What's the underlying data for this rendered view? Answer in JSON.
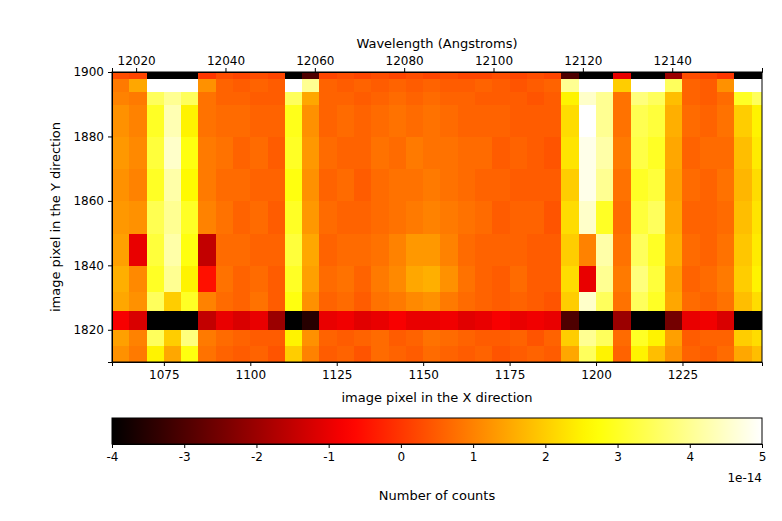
{
  "chart_data": {
    "type": "heatmap",
    "color": "hot",
    "xlabel": "image pixel in the X direction",
    "ylabel": "image pixel in the Y direction",
    "top_xlabel": "Wavelength (Angstroms)",
    "xlim": [
      1060,
      1248
    ],
    "xticks": [
      1075,
      1100,
      1125,
      1150,
      1175,
      1200,
      1225
    ],
    "ylim": [
      1810,
      1900
    ],
    "yticks": [
      1820,
      1840,
      1860,
      1880,
      1900
    ],
    "top_xlim": [
      12014.6,
      12160.1
    ],
    "top_xticks": [
      12020,
      12040,
      12060,
      12080,
      12100,
      12120,
      12140
    ],
    "x_edges": [
      1060,
      1065,
      1070,
      1075,
      1080,
      1085,
      1090,
      1095,
      1100,
      1105,
      1110,
      1115,
      1120,
      1125,
      1130,
      1135,
      1140,
      1145,
      1150,
      1155,
      1160,
      1165,
      1170,
      1175,
      1180,
      1185,
      1190,
      1195,
      1200,
      1205,
      1210,
      1215,
      1220,
      1225,
      1230,
      1235,
      1240,
      1245,
      1248
    ],
    "y_edges": [
      1810,
      1815,
      1820,
      1826,
      1832,
      1840,
      1850,
      1860,
      1870,
      1880,
      1890,
      1894,
      1898,
      1900
    ],
    "cells": [
      [
        1.2,
        0.9,
        2.5,
        1.5,
        2.8,
        0.8,
        0.6,
        0.5,
        0.6,
        0.4,
        2.0,
        1.0,
        0.5,
        0.6,
        0.4,
        0.7,
        0.6,
        0.5,
        0.7,
        0.6,
        0.5,
        0.6,
        0.4,
        0.5,
        0.6,
        0.5,
        1.5,
        3.5,
        2.5,
        0.6,
        2.5,
        1.8,
        1.2,
        0.6,
        0.5,
        0.7,
        1.5,
        1.8
      ],
      [
        1.4,
        1.0,
        3.5,
        2.0,
        3.8,
        0.9,
        0.7,
        0.6,
        0.5,
        0.5,
        2.5,
        1.2,
        0.6,
        0.5,
        0.6,
        0.7,
        0.5,
        0.6,
        0.8,
        0.7,
        0.6,
        0.5,
        0.5,
        0.6,
        0.4,
        0.6,
        2.0,
        4.0,
        3.5,
        0.7,
        3.0,
        2.5,
        1.4,
        0.5,
        0.6,
        0.6,
        2.0,
        2.2
      ],
      [
        -0.8,
        -1.2,
        -4,
        -4,
        -4,
        -1.5,
        -1.0,
        -1.2,
        -1.0,
        -2.0,
        -4,
        -3.5,
        -1.0,
        -0.9,
        -1.1,
        -1.0,
        -0.8,
        -1.0,
        -1.0,
        -0.9,
        -1.1,
        -1.0,
        -0.8,
        -1.0,
        -0.9,
        -1.0,
        -3.0,
        -4,
        -4,
        -2.0,
        -4,
        -4,
        -2.5,
        -1.0,
        -0.9,
        -1.2,
        -4,
        -4
      ],
      [
        1.5,
        1.2,
        3.5,
        2.0,
        3.0,
        1.0,
        0.7,
        0.6,
        0.8,
        0.5,
        2.8,
        1.2,
        0.6,
        0.7,
        0.5,
        0.8,
        0.9,
        1.1,
        1.2,
        0.9,
        0.7,
        0.6,
        0.5,
        0.6,
        0.5,
        0.4,
        2.0,
        4.5,
        3.5,
        0.8,
        3.5,
        3.0,
        1.5,
        0.7,
        0.6,
        0.8,
        1.8,
        2.2
      ],
      [
        1.6,
        1.1,
        3.0,
        4.0,
        2.5,
        -0.5,
        0.8,
        0.6,
        0.7,
        0.5,
        3.0,
        1.4,
        0.7,
        0.8,
        0.6,
        0.9,
        1.1,
        1.5,
        1.6,
        1.2,
        0.8,
        0.6,
        0.5,
        0.7,
        0.5,
        0.5,
        2.2,
        -1.0,
        4.0,
        0.9,
        3.8,
        3.2,
        1.4,
        0.6,
        0.7,
        0.9,
        2.0,
        2.5
      ],
      [
        1.4,
        -1.0,
        3.2,
        4.2,
        2.8,
        -1.5,
        0.7,
        0.7,
        0.6,
        0.6,
        3.2,
        1.5,
        0.6,
        0.7,
        0.7,
        0.8,
        1.0,
        1.3,
        1.3,
        1.0,
        0.7,
        0.6,
        0.6,
        0.6,
        0.5,
        0.5,
        2.0,
        1.0,
        4.2,
        0.8,
        3.5,
        3.0,
        1.6,
        0.7,
        0.6,
        0.8,
        1.9,
        2.4
      ],
      [
        1.3,
        1.2,
        3.4,
        4.0,
        3.0,
        1.0,
        0.8,
        0.6,
        0.7,
        0.5,
        3.0,
        1.3,
        0.7,
        0.6,
        0.6,
        0.7,
        0.8,
        0.9,
        1.0,
        0.9,
        0.8,
        0.7,
        0.5,
        0.6,
        0.6,
        0.4,
        2.2,
        4.5,
        3.0,
        0.7,
        3.2,
        3.5,
        1.5,
        0.6,
        0.6,
        0.7,
        1.8,
        2.3
      ],
      [
        1.2,
        1.0,
        3.0,
        4.2,
        2.6,
        0.9,
        0.7,
        0.7,
        0.6,
        0.6,
        2.8,
        1.2,
        0.6,
        0.7,
        0.5,
        0.7,
        0.8,
        0.8,
        0.9,
        0.8,
        0.7,
        0.6,
        0.6,
        0.5,
        0.5,
        0.5,
        2.0,
        4.8,
        4.0,
        0.8,
        3.0,
        3.2,
        1.4,
        0.7,
        0.6,
        0.8,
        1.7,
        2.2
      ],
      [
        1.3,
        1.1,
        3.2,
        4.5,
        2.8,
        0.9,
        0.8,
        0.6,
        0.7,
        0.5,
        3.0,
        1.3,
        0.7,
        0.6,
        0.6,
        0.8,
        0.7,
        0.9,
        0.8,
        0.8,
        0.7,
        0.7,
        0.5,
        0.6,
        0.5,
        0.4,
        2.3,
        4.8,
        4.2,
        0.9,
        3.3,
        3.0,
        1.5,
        0.6,
        0.7,
        0.7,
        1.8,
        2.4
      ],
      [
        1.2,
        1.0,
        3.0,
        4.3,
        2.5,
        0.8,
        0.7,
        0.7,
        0.6,
        0.6,
        2.9,
        1.2,
        0.6,
        0.7,
        0.6,
        0.7,
        0.8,
        0.7,
        0.8,
        0.7,
        0.6,
        0.6,
        0.6,
        0.5,
        0.5,
        0.5,
        2.2,
        5.0,
        4.0,
        0.8,
        3.4,
        3.2,
        1.6,
        0.7,
        0.6,
        0.8,
        2.0,
        2.5
      ],
      [
        1.0,
        0.9,
        3.5,
        4.0,
        3.5,
        0.8,
        0.6,
        0.6,
        0.5,
        0.5,
        3.5,
        1.5,
        0.6,
        0.6,
        0.5,
        0.6,
        0.7,
        0.6,
        0.7,
        0.6,
        0.6,
        0.5,
        0.5,
        0.5,
        0.4,
        0.5,
        2.5,
        4.5,
        4.0,
        0.8,
        3.8,
        3.5,
        1.8,
        0.6,
        0.5,
        0.7,
        3.0,
        3.5
      ],
      [
        0.9,
        1.5,
        5,
        5,
        5,
        1.2,
        0.6,
        0.5,
        0.6,
        0.5,
        5,
        4.0,
        0.6,
        0.5,
        0.6,
        0.5,
        0.6,
        0.5,
        0.6,
        0.5,
        0.5,
        0.6,
        0.5,
        0.4,
        0.5,
        0.6,
        4.0,
        5,
        5,
        2.0,
        5,
        5,
        3.5,
        0.6,
        0.5,
        1.2,
        5,
        5
      ],
      [
        0.3,
        0.2,
        -4,
        -4,
        -4,
        0.0,
        0.3,
        0.2,
        0.3,
        0.2,
        -4,
        -3,
        0.2,
        0.3,
        0.2,
        0.3,
        0.2,
        0.3,
        0.2,
        0.3,
        0.2,
        0.2,
        0.3,
        0.2,
        0.3,
        0.2,
        -3,
        -4,
        -4,
        -1,
        -4,
        -4,
        -2,
        0.3,
        0.2,
        0.0,
        -4,
        -4
      ]
    ],
    "colorbar": {
      "range": [
        -4,
        5
      ],
      "ticks": [
        -4,
        -3,
        -2,
        -1,
        0,
        1,
        2,
        3,
        4,
        5
      ],
      "label": "Number of counts",
      "offset_label": "1e-14"
    }
  }
}
